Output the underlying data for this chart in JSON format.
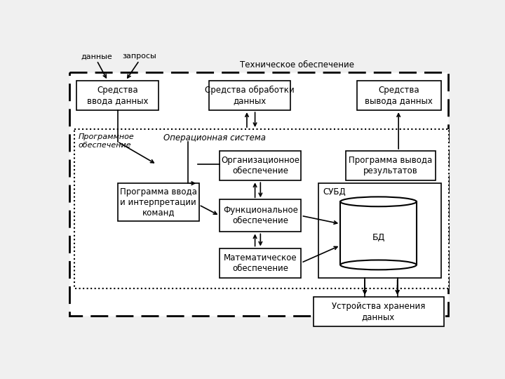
{
  "title_tech": "Техническое обеспечение",
  "label_dannye": "данные",
  "label_zaprosy": "запросы",
  "label_prog_obespech": "Программное\nобеспечение",
  "label_op_sistema": "Операционная система",
  "box_vvod": "Средства\nввода данных",
  "box_obrab": "Средства обработки\nданных",
  "box_vyvod": "Средства\nвывода данных",
  "box_org": "Организационное\nобеспечение",
  "box_prog_vyvod": "Программа вывода\nрезультатов",
  "box_prog_vvod": "Программа ввода\nи интерпретации\nкоманд",
  "box_func": "Функциональное\nобеспечение",
  "box_math": "Математическое\nобеспечение",
  "box_subd": "СУБД",
  "box_bd": "БД",
  "box_ustr": "Устройства хранения\nданных"
}
